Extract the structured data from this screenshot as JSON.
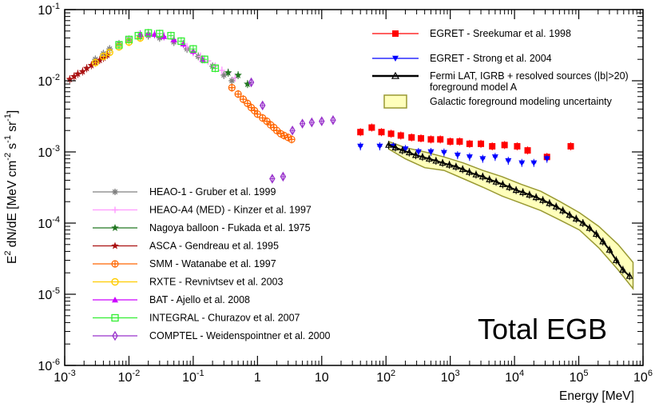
{
  "chart_data": {
    "type": "scatter",
    "title": "Total EGB",
    "xlabel": "Energy [MeV]",
    "ylabel": {
      "base": "E",
      "sup1": "2",
      "mid": " dN/dE [MeV cm",
      "sup2": "-2",
      "mid2": " s",
      "sup3": "-1",
      "mid3": " sr",
      "sup4": "-1",
      "end": "]"
    },
    "x_scale": "log",
    "y_scale": "log",
    "xlim": [
      0.001,
      1000000
    ],
    "ylim": [
      1e-06,
      0.1
    ],
    "grid": false,
    "x_ticks": [
      {
        "base": "10",
        "exp": "-3",
        "value": 0.001
      },
      {
        "base": "10",
        "exp": "-2",
        "value": 0.01
      },
      {
        "base": "10",
        "exp": "-1",
        "value": 0.1
      },
      {
        "base": "1",
        "exp": "",
        "value": 1
      },
      {
        "base": "10",
        "exp": "",
        "value": 10
      },
      {
        "base": "10",
        "exp": "2",
        "value": 100
      },
      {
        "base": "10",
        "exp": "3",
        "value": 1000
      },
      {
        "base": "10",
        "exp": "4",
        "value": 10000
      },
      {
        "base": "10",
        "exp": "5",
        "value": 100000
      },
      {
        "base": "10",
        "exp": "6",
        "value": 1000000
      }
    ],
    "y_ticks": [
      {
        "base": "10",
        "exp": "-6",
        "value": 1e-06
      },
      {
        "base": "10",
        "exp": "-5",
        "value": 1e-05
      },
      {
        "base": "10",
        "exp": "-4",
        "value": 0.0001
      },
      {
        "base": "10",
        "exp": "-3",
        "value": 0.001
      },
      {
        "base": "10",
        "exp": "-2",
        "value": 0.01
      },
      {
        "base": "10",
        "exp": "-1",
        "value": 0.1
      }
    ],
    "legend_top_right": [
      {
        "name": "EGRET - Sreekumar et al. 1998",
        "color": "#ff0000",
        "marker": "square"
      },
      {
        "name": "EGRET - Strong et al. 2004",
        "color": "#0000ff",
        "marker": "triangle-down"
      },
      {
        "name": "Fermi LAT, IGRB + resolved sources (|b|>20)",
        "name2": "foreground model A",
        "color": "#000000",
        "marker": "triangle-open"
      },
      {
        "name": "Galactic foreground modeling uncertainty",
        "color": "#999933",
        "fill": "#ffffbb",
        "marker": "box"
      }
    ],
    "legend_bottom_left": [
      {
        "name": "HEAO-1 - Gruber et al. 1999",
        "color": "#808080",
        "marker": "star"
      },
      {
        "name": "HEAO-A4 (MED) - Kinzer et al. 1997",
        "color": "#ff99ff",
        "marker": "plus"
      },
      {
        "name": "Nagoya balloon - Fukada et al. 1975",
        "color": "#227722",
        "marker": "star5"
      },
      {
        "name": "ASCA - Gendreau et al. 1995",
        "color": "#aa1111",
        "marker": "star5"
      },
      {
        "name": "SMM - Watanabe et al. 1997",
        "color": "#ff6600",
        "marker": "circle-plus"
      },
      {
        "name": "RXTE - Revnivtsev et al. 2003",
        "color": "#ffcc00",
        "marker": "circle-open"
      },
      {
        "name": "BAT - Ajello et al. 2008",
        "color": "#cc00ff",
        "marker": "triangle"
      },
      {
        "name": "INTEGRAL - Churazov et al. 2007",
        "color": "#33ee33",
        "marker": "square-open"
      },
      {
        "name": "COMPTEL - Weidenspointner et al. 2000",
        "color": "#9933cc",
        "marker": "diamond-open"
      }
    ],
    "series": [
      {
        "name": "EGRET - Sreekumar et al. 1998",
        "color": "#ff0000",
        "marker": "square",
        "x": [
          40,
          60,
          85,
          120,
          170,
          250,
          350,
          500,
          700,
          1000,
          1400,
          2000,
          3000,
          4500,
          7000,
          11000,
          16000,
          32000,
          75000
        ],
        "y": [
          0.0019,
          0.0022,
          0.0019,
          0.0018,
          0.0017,
          0.0016,
          0.00155,
          0.0015,
          0.0015,
          0.0014,
          0.0014,
          0.0013,
          0.0013,
          0.0012,
          0.00125,
          0.0012,
          0.00105,
          0.00085,
          0.0012
        ]
      },
      {
        "name": "EGRET - Strong et al. 2004",
        "color": "#0000ff",
        "marker": "triangle-down",
        "x": [
          40,
          80,
          130,
          200,
          320,
          500,
          800,
          1300,
          2000,
          3200,
          5000,
          8000,
          13000,
          20000,
          32000
        ],
        "y": [
          0.0012,
          0.0012,
          0.0012,
          0.0011,
          0.001,
          0.001,
          0.00098,
          0.0009,
          0.00085,
          0.0008,
          0.00085,
          0.00075,
          0.0007,
          0.0007,
          0.0008
        ]
      },
      {
        "name": "Fermi LAT, IGRB + resolved sources (|b|>20)",
        "color": "#000000",
        "marker": "triangle-open",
        "x": [
          110,
          140,
          180,
          230,
          290,
          370,
          470,
          600,
          760,
          970,
          1230,
          1560,
          1980,
          2520,
          3200,
          4070,
          5170,
          6560,
          8340,
          10600,
          13500,
          17100,
          21700,
          27600,
          35000,
          44500,
          56500,
          71800,
          91200,
          116000,
          147000,
          187000,
          237000,
          301000,
          383000,
          486000,
          617000
        ],
        "y": [
          0.00125,
          0.00115,
          0.00105,
          0.00098,
          0.0009,
          0.00085,
          0.0008,
          0.00075,
          0.0007,
          0.00066,
          0.00062,
          0.00057,
          0.00052,
          0.00048,
          0.00045,
          0.00041,
          0.00038,
          0.00035,
          0.00032,
          0.00029,
          0.00027,
          0.00025,
          0.00023,
          0.00021,
          0.00019,
          0.00017,
          0.00015,
          0.00013,
          0.000115,
          0.0001,
          8.5e-05,
          7e-05,
          5.5e-05,
          4.2e-05,
          3e-05,
          2.2e-05,
          1.8e-05
        ]
      },
      {
        "name": "HEAO-1 - Gruber et al. 1999",
        "color": "#808080",
        "marker": "star",
        "x": [
          0.003,
          0.004,
          0.005,
          0.007,
          0.01,
          0.015,
          0.02,
          0.03,
          0.05,
          0.08,
          0.12,
          0.2,
          0.3,
          0.4
        ],
        "y": [
          0.02,
          0.024,
          0.028,
          0.033,
          0.038,
          0.042,
          0.043,
          0.04,
          0.035,
          0.028,
          0.022,
          0.016,
          0.012,
          0.01
        ]
      },
      {
        "name": "HEAO-A4 (MED) - Kinzer et al. 1997",
        "color": "#ff99ff",
        "marker": "plus",
        "x": [
          0.08,
          0.1,
          0.13,
          0.17,
          0.22,
          0.28,
          0.35,
          0.45
        ],
        "y": [
          0.03,
          0.025,
          0.022,
          0.019,
          0.016,
          0.014,
          0.013,
          0.011
        ]
      },
      {
        "name": "Nagoya balloon - Fukada et al. 1975",
        "color": "#227722",
        "marker": "star5",
        "x": [
          0.35,
          0.5,
          0.7
        ],
        "y": [
          0.013,
          0.012,
          0.009
        ]
      },
      {
        "name": "ASCA - Gendreau et al. 1995",
        "color": "#aa1111",
        "marker": "star5",
        "x": [
          0.0012,
          0.0014,
          0.0016,
          0.0019,
          0.0022,
          0.0026,
          0.003,
          0.0035,
          0.004,
          0.0046
        ],
        "y": [
          0.0105,
          0.0115,
          0.0125,
          0.0135,
          0.015,
          0.0165,
          0.018,
          0.0195,
          0.021,
          0.023
        ]
      },
      {
        "name": "SMM - Watanabe et al. 1997",
        "color": "#ff6600",
        "marker": "circle-plus",
        "x": [
          0.4,
          0.5,
          0.6,
          0.7,
          0.8,
          0.9,
          1.0,
          1.2,
          1.4,
          1.6,
          1.8,
          2.0,
          2.3,
          2.6,
          3.0,
          3.4
        ],
        "y": [
          0.008,
          0.0065,
          0.0055,
          0.0048,
          0.0042,
          0.0038,
          0.0034,
          0.003,
          0.0027,
          0.0024,
          0.0022,
          0.002,
          0.0018,
          0.0017,
          0.0016,
          0.0015
        ]
      },
      {
        "name": "RXTE - Revnivtsev et al. 2003",
        "color": "#ffcc00",
        "marker": "circle-open",
        "x": [
          0.003,
          0.004,
          0.005,
          0.007,
          0.01,
          0.015
        ],
        "y": [
          0.018,
          0.022,
          0.025,
          0.03,
          0.035,
          0.04
        ]
      },
      {
        "name": "BAT - Ajello et al. 2008",
        "color": "#cc00ff",
        "marker": "triangle",
        "x": [
          0.015,
          0.02,
          0.025,
          0.035,
          0.05,
          0.07,
          0.1,
          0.14
        ],
        "y": [
          0.045,
          0.046,
          0.045,
          0.042,
          0.038,
          0.033,
          0.026,
          0.02
        ]
      },
      {
        "name": "INTEGRAL - Churazov et al. 2007",
        "color": "#33ee33",
        "marker": "square-open",
        "x": [
          0.007,
          0.01,
          0.014,
          0.02,
          0.03,
          0.045,
          0.065,
          0.1,
          0.15,
          0.22
        ],
        "y": [
          0.032,
          0.038,
          0.043,
          0.047,
          0.046,
          0.043,
          0.036,
          0.028,
          0.02,
          0.015
        ]
      },
      {
        "name": "COMPTEL - Weidenspointner et al. 2000",
        "color": "#9933cc",
        "marker": "diamond-open",
        "x": [
          0.8,
          1.2,
          1.7,
          2.5,
          3.5,
          5,
          7,
          10,
          15
        ],
        "y": [
          0.0095,
          0.0045,
          0.00042,
          0.00045,
          0.002,
          0.0025,
          0.0026,
          0.0027,
          0.0028
        ]
      }
    ],
    "uncertainty_band": {
      "name": "Galactic foreground modeling uncertainty",
      "x": [
        110,
        200,
        400,
        800,
        1600,
        3200,
        6400,
        12800,
        25600,
        51200,
        102400,
        204800,
        409600,
        700000
      ],
      "y_low": [
        0.0011,
        0.0008,
        0.0006,
        0.00055,
        0.00042,
        0.00032,
        0.00024,
        0.00019,
        0.00015,
        0.00011,
        8e-05,
        4.5e-05,
        2.2e-05,
        1.2e-05
      ],
      "y_high": [
        0.0014,
        0.00115,
        0.001,
        0.00085,
        0.0007,
        0.00055,
        0.00045,
        0.00035,
        0.00028,
        0.0002,
        0.00014,
        9e-05,
        5e-05,
        2.8e-05
      ]
    }
  }
}
